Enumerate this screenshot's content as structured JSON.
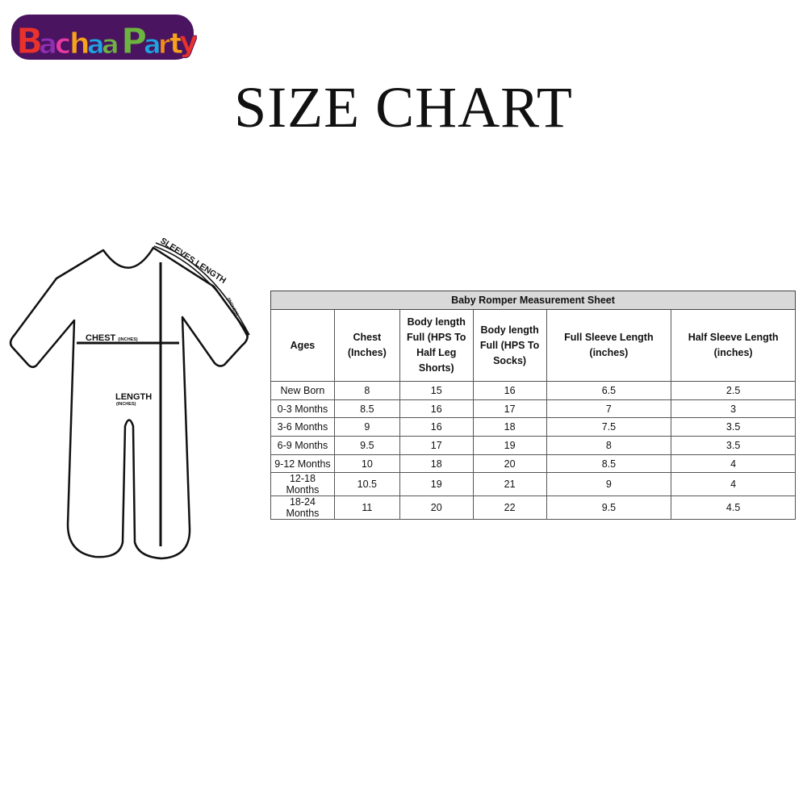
{
  "logo": {
    "text": "BachaaParty",
    "colors": [
      "#e8322b",
      "#8e2fb2",
      "#f6a21a",
      "#6cb33f",
      "#1ba6e0",
      "#f28c1d",
      "#e8322b",
      "#4a1460"
    ]
  },
  "title": "SIZE CHART",
  "diagram": {
    "sleeves_label": "SLEEVES LENGTH",
    "sleeves_unit": "(INCHES)",
    "chest_label": "CHEST",
    "chest_unit": "(INCHES)",
    "length_label": "LENGTH",
    "length_unit": "(INCHES)"
  },
  "table": {
    "title": "Baby Romper Measurement Sheet",
    "header_bg": "#d9d9d9",
    "columns": [
      "Ages",
      "Chest (Inches)",
      "Body length Full (HPS To Half Leg Shorts)",
      "Body length Full (HPS To Socks)",
      "Full Sleeve Length (inches)",
      "Half Sleeve Length (inches)"
    ],
    "rows": [
      [
        "New Born",
        "8",
        "15",
        "16",
        "6.5",
        "2.5"
      ],
      [
        "0-3 Months",
        "8.5",
        "16",
        "17",
        "7",
        "3"
      ],
      [
        "3-6 Months",
        "9",
        "16",
        "18",
        "7.5",
        "3.5"
      ],
      [
        "6-9 Months",
        "9.5",
        "17",
        "19",
        "8",
        "3.5"
      ],
      [
        "9-12 Months",
        "10",
        "18",
        "20",
        "8.5",
        "4"
      ],
      [
        "12-18 Months",
        "10.5",
        "19",
        "21",
        "9",
        "4"
      ],
      [
        "18-24 Months",
        "11",
        "20",
        "22",
        "9.5",
        "4.5"
      ]
    ]
  }
}
